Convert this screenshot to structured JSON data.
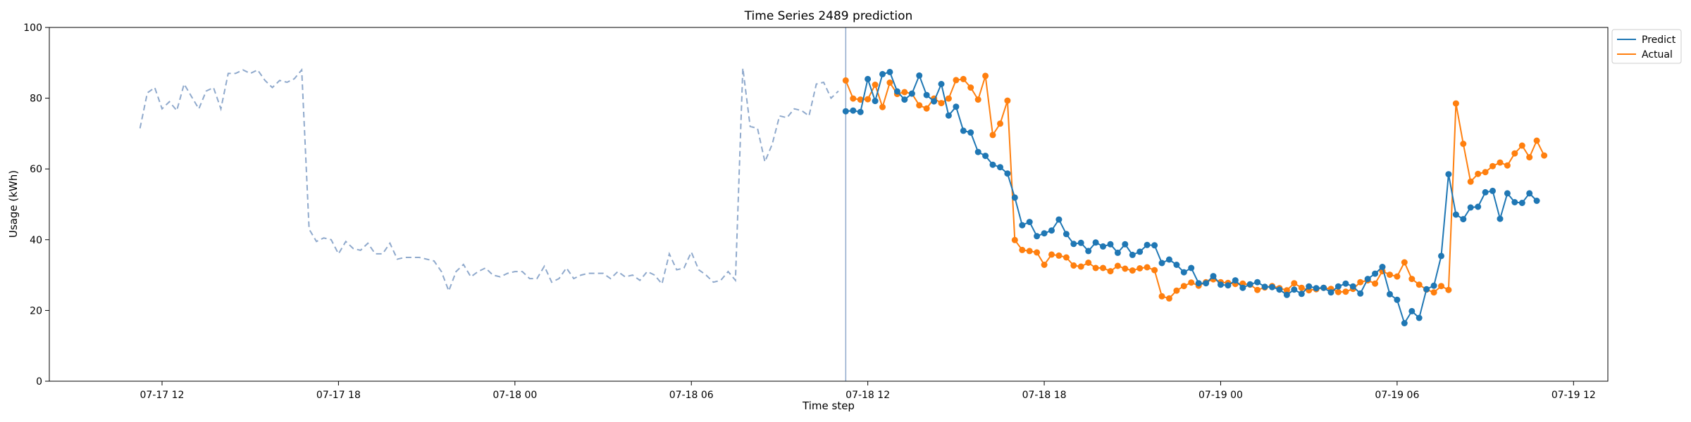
{
  "chart_data": {
    "type": "line",
    "title": "Time Series 2489 prediction",
    "xlabel": "Time step",
    "ylabel": "Usage (kWh)",
    "ylim": [
      0,
      100
    ],
    "xlim": [
      "2025-07-17T08:10",
      "2025-07-19T13:10"
    ],
    "x_ticks": [
      {
        "t": "2025-07-17T12:00",
        "label": "07-17 12"
      },
      {
        "t": "2025-07-17T18:00",
        "label": "07-17 18"
      },
      {
        "t": "2025-07-18T00:00",
        "label": "07-18 00"
      },
      {
        "t": "2025-07-18T06:00",
        "label": "07-18 06"
      },
      {
        "t": "2025-07-18T12:00",
        "label": "07-18 12"
      },
      {
        "t": "2025-07-18T18:00",
        "label": "07-18 18"
      },
      {
        "t": "2025-07-19T00:00",
        "label": "07-19 00"
      },
      {
        "t": "2025-07-19T06:00",
        "label": "07-19 06"
      },
      {
        "t": "2025-07-19T12:00",
        "label": "07-19 12"
      }
    ],
    "y_ticks": [
      0,
      20,
      40,
      60,
      80,
      100
    ],
    "grid": false,
    "legend_position": "top-right",
    "forecast_start": "2025-07-18T11:15",
    "history": {
      "start": "2025-07-17T11:15",
      "step_minutes": 15,
      "color": "#8fa9cc",
      "style": "dashed",
      "values": [
        71.5,
        81.5,
        83,
        77,
        79,
        76.5,
        84,
        80.5,
        77,
        82,
        83,
        77,
        87,
        87,
        88,
        87,
        88,
        85,
        83,
        85,
        84.5,
        85.5,
        88,
        43,
        39.5,
        40.5,
        40,
        36,
        39.5,
        37.5,
        37,
        39,
        36,
        36,
        39,
        34.5,
        35,
        35,
        35,
        34.5,
        34,
        31,
        25.5,
        31,
        33,
        29.5,
        31,
        32,
        30,
        29.5,
        30.5,
        31,
        31,
        29,
        29,
        32.5,
        28,
        29,
        32,
        29,
        30,
        30.5,
        30.5,
        30.5,
        29,
        31,
        29.5,
        30,
        28.5,
        31,
        30,
        27.5,
        36,
        31.5,
        32,
        36.5,
        31.5,
        30,
        28,
        28.5,
        31,
        28.5,
        88.5,
        72,
        71.5,
        62,
        67,
        75,
        74.5,
        77,
        76.5,
        75,
        84,
        84.5,
        80,
        82
      ]
    },
    "series": [
      {
        "name": "Predict",
        "color": "#1f77b4",
        "start": "2025-07-18T11:15",
        "step_minutes": 15,
        "values": [
          76.3,
          76.5,
          76.1,
          85.4,
          79.2,
          86.8,
          87.4,
          81.9,
          79.6,
          81.3,
          86.4,
          80.9,
          79.1,
          84,
          75.1,
          77.6,
          70.8,
          70.3,
          64.8,
          63.7,
          61.2,
          60.5,
          58.7,
          51.9,
          44.1,
          45,
          41,
          41.8,
          42.6,
          45.7,
          41.6,
          38.8,
          39.1,
          36.8,
          39.2,
          38.1,
          38.7,
          36.3,
          38.7,
          35.7,
          36.6,
          38.5,
          38.4,
          33.4,
          34.4,
          32.9,
          30.8,
          32,
          27.7,
          27.7,
          29.7,
          27.3,
          27.1,
          28.5,
          26.4,
          27.4,
          28,
          26.7,
          26.6,
          25.9,
          24.4,
          25.9,
          24.7,
          26.8,
          26.3,
          26.4,
          25.1,
          26.8,
          27.6,
          26.8,
          24.8,
          28.9,
          30.4,
          32.3,
          24.6,
          23,
          16.4,
          19.8,
          17.9,
          26,
          27,
          35.4,
          58.5,
          47.1,
          45.8,
          49.1,
          49.3,
          53.4,
          53.8,
          45.9,
          53.1,
          50.6,
          50.4,
          53.1,
          51
        ]
      },
      {
        "name": "Actual",
        "color": "#ff7f0e",
        "start": "2025-07-18T11:15",
        "step_minutes": 15,
        "values": [
          85,
          79.9,
          79.6,
          79.7,
          83.8,
          77.5,
          84.4,
          81.2,
          81.7,
          81.3,
          78,
          77.1,
          79.9,
          78.6,
          79.9,
          85.1,
          85.4,
          83,
          79.6,
          86.3,
          69.6,
          72.8,
          79.3,
          39.9,
          37.1,
          36.8,
          36.4,
          32.9,
          35.8,
          35.5,
          35,
          32.7,
          32.4,
          33.5,
          32,
          32,
          31.1,
          32.6,
          31.8,
          31.3,
          31.9,
          32.2,
          31.4,
          24,
          23.4,
          25.6,
          26.9,
          27.9,
          27,
          28,
          28.8,
          28,
          27.8,
          27.5,
          27.6,
          27.3,
          25.8,
          26.5,
          26.9,
          26.3,
          25.7,
          27.7,
          26.4,
          25.7,
          26,
          26.4,
          26.1,
          25.2,
          25.3,
          26.1,
          28,
          28.5,
          27.6,
          31.1,
          30.1,
          29.6,
          33.6,
          28.9,
          27.3,
          25.9,
          25.1,
          26.9,
          25.8,
          78.5,
          67.1,
          56.4,
          58.6,
          59.1,
          60.8,
          61.8,
          61,
          64.4,
          66.6,
          63.3,
          68,
          63.8
        ]
      }
    ]
  }
}
